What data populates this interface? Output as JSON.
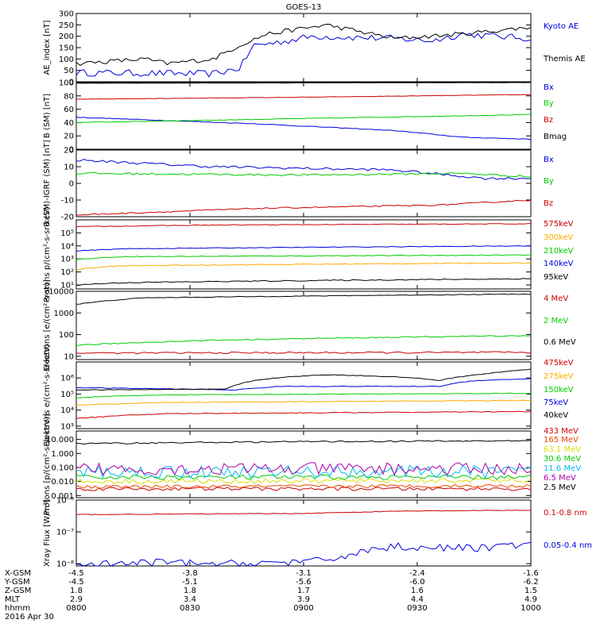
{
  "title": "GOES-13",
  "date_label": "2016 Apr 30",
  "orbit": {
    "row_labels": [
      "X-GSM",
      "Y-GSM",
      "Z-GSM",
      "MLT",
      "hhmm"
    ],
    "columns": [
      {
        "values": [
          "-4.5",
          "-4.5",
          "1.8",
          "2.9",
          "0800"
        ]
      },
      {
        "values": [
          "-3.8",
          "-5.1",
          "1.8",
          "3.4",
          "0830"
        ]
      },
      {
        "values": [
          "-3.1",
          "-5.6",
          "1.7",
          "3.9",
          "0900"
        ]
      },
      {
        "values": [
          "-2.4",
          "-6.0",
          "1.6",
          "4.4",
          "0930"
        ]
      },
      {
        "values": [
          "-1.6",
          "-6.2",
          "1.5",
          "4.9",
          "1000"
        ]
      }
    ]
  },
  "colors": {
    "black": "#000000",
    "blue": "#0000dd",
    "green": "#00cc00",
    "red": "#cc0000",
    "orange": "#ffaa00",
    "cyan": "#00bbee",
    "yellow": "#dddd00",
    "purple": "#aa00aa"
  },
  "chart_data": [
    {
      "type": "line",
      "ylabel": "AE_index [nT]",
      "ylim": [
        0,
        300
      ],
      "yticks": [
        0,
        50,
        100,
        150,
        200,
        250,
        300
      ],
      "ytick_labels": [
        "0",
        "50",
        "100",
        "150",
        "200",
        "250",
        "300"
      ],
      "series": [
        {
          "name": "Kyoto AE",
          "color": "#0000dd"
        },
        {
          "name": "Themis AE",
          "color": "#000000"
        }
      ]
    },
    {
      "type": "line",
      "ylabel": "B (SM) [nT]",
      "ylim": [
        0,
        100
      ],
      "yticks": [
        0,
        20,
        40,
        60,
        80,
        100
      ],
      "ytick_labels": [
        "0",
        "20",
        "40",
        "60",
        "80",
        "100"
      ],
      "series": [
        {
          "name": "Bx",
          "color": "#0000dd"
        },
        {
          "name": "By",
          "color": "#00cc00"
        },
        {
          "name": "Bz",
          "color": "#cc0000"
        },
        {
          "name": "Bmag",
          "color": "#000000"
        }
      ]
    },
    {
      "type": "line",
      "ylabel": "B (SM)-IGRF (SM) [nT]",
      "ylim": [
        -20,
        20
      ],
      "yticks": [
        -20,
        -10,
        0,
        10,
        20
      ],
      "ytick_labels": [
        "-20",
        "-10",
        "0",
        "10",
        "20"
      ],
      "series": [
        {
          "name": "Bx",
          "color": "#0000dd"
        },
        {
          "name": "By",
          "color": "#00cc00"
        },
        {
          "name": "Bz",
          "color": "#cc0000"
        }
      ]
    },
    {
      "type": "line",
      "log": true,
      "ylabel": "Protons p/(cm²-s-sr-keV)",
      "ylim": [
        5,
        1000000
      ],
      "yticks": [
        10,
        100,
        1000,
        10000,
        100000
      ],
      "ytick_labels": [
        "10¹",
        "10²",
        "10³",
        "10⁴",
        "10⁵"
      ],
      "series": [
        {
          "name": "575keV",
          "color": "#cc0000"
        },
        {
          "name": "300keV",
          "color": "#ffaa00"
        },
        {
          "name": "210keV",
          "color": "#00cc00"
        },
        {
          "name": "140keV",
          "color": "#0000dd"
        },
        {
          "name": "95keV",
          "color": "#000000"
        }
      ]
    },
    {
      "type": "line",
      "log": true,
      "ylabel": "Electrons [e/(cm²-s-sr)]",
      "ylim": [
        7,
        10000
      ],
      "yticks": [
        10,
        100,
        1000,
        10000
      ],
      "ytick_labels": [
        "10",
        "100",
        "1000",
        "10000"
      ],
      "series": [
        {
          "name": "4 MeV",
          "color": "#cc0000"
        },
        {
          "name": "2 MeV",
          "color": "#00cc00"
        },
        {
          "name": "0.6 MeV",
          "color": "#000000"
        }
      ]
    },
    {
      "type": "line",
      "log": true,
      "ylabel": "Electrons e/(cm²-s-sr-keV)",
      "ylim": [
        700,
        10000000
      ],
      "yticks": [
        1000,
        10000,
        100000,
        1000000
      ],
      "ytick_labels": [
        "10³",
        "10⁴",
        "10⁵",
        "10⁶"
      ],
      "series": [
        {
          "name": "475keV",
          "color": "#cc0000"
        },
        {
          "name": "275keV",
          "color": "#ffaa00"
        },
        {
          "name": "150keV",
          "color": "#00cc00"
        },
        {
          "name": "75keV",
          "color": "#0000dd"
        },
        {
          "name": "40keV",
          "color": "#000000"
        }
      ]
    },
    {
      "type": "line",
      "log": true,
      "ylabel": "Protons [p/(cm²-s-sr-keV)]",
      "ylim": [
        0.0007,
        40
      ],
      "yticks": [
        0.001,
        0.01,
        0.1,
        1,
        10
      ],
      "ytick_labels": [
        "0.001",
        "0.010",
        "0.100",
        "1.000",
        "10.000"
      ],
      "series": [
        {
          "name": "433 MeV",
          "color": "#cc0000"
        },
        {
          "name": "165 MeV",
          "color": "#ee4400"
        },
        {
          "name": "63.1 MeV",
          "color": "#dddd00"
        },
        {
          "name": "30.6 MeV",
          "color": "#00cc00"
        },
        {
          "name": "11.6 MeV",
          "color": "#00bbee"
        },
        {
          "name": "6.5 MeV",
          "color": "#aa00aa"
        },
        {
          "name": "2.5 MeV",
          "color": "#000000"
        }
      ]
    },
    {
      "type": "line",
      "log": true,
      "ylabel": "Xray Flux [W/m²]",
      "ylim": [
        8.5e-09,
        1e-06
      ],
      "yticks": [
        1e-08,
        1e-07,
        1e-06
      ],
      "ytick_labels": [
        "10⁻⁸",
        "10⁻⁷",
        "10⁻⁶"
      ],
      "series": [
        {
          "name": "0.1-0.8 nm",
          "color": "#cc0000"
        },
        {
          "name": "0.05-0.4 nm",
          "color": "#0000dd"
        }
      ]
    }
  ]
}
